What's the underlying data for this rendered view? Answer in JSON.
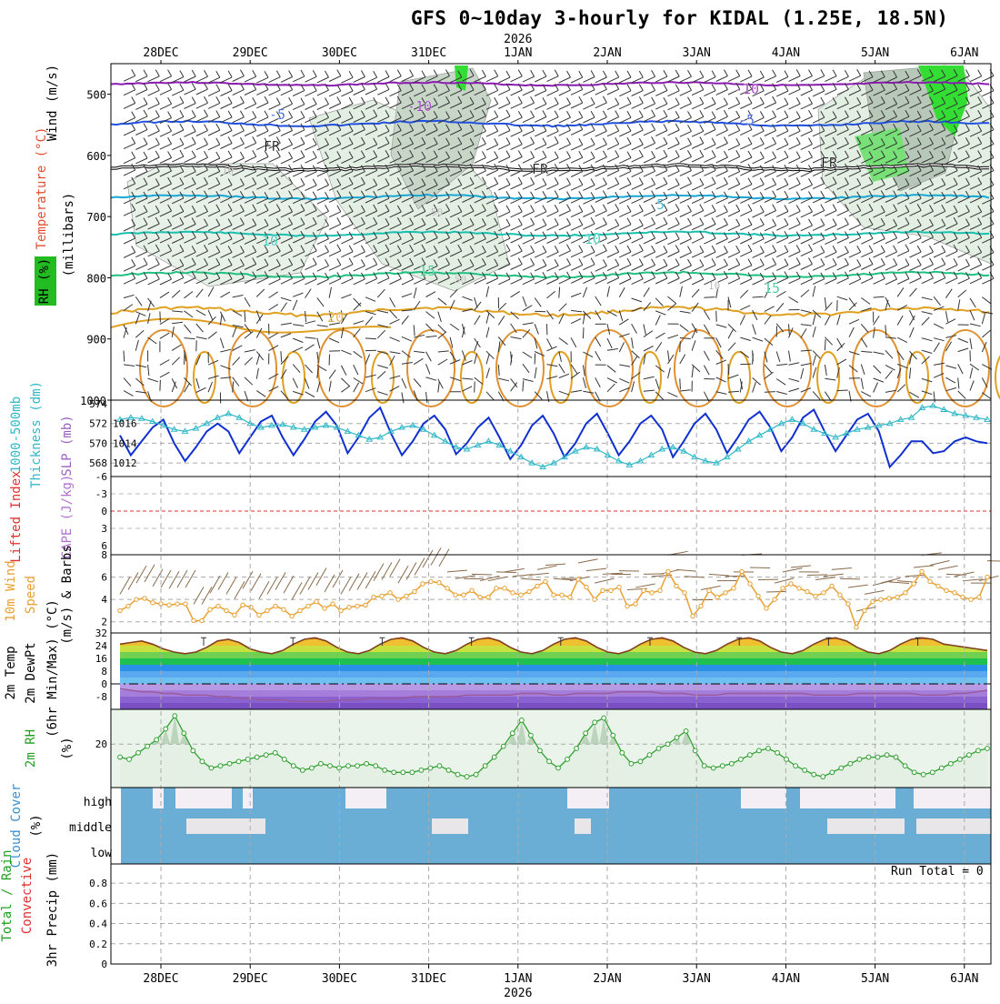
{
  "title": "GFS 0~10day 3-hourly for KIDAL (1.25E, 18.5N)",
  "year_label": "2026",
  "x_axis": {
    "days": [
      "28DEC",
      "29DEC",
      "30DEC",
      "31DEC",
      "1JAN",
      "2JAN",
      "3JAN",
      "4JAN",
      "5JAN",
      "6JAN"
    ],
    "first_day_hour_offset": 18,
    "total_hours": 240
  },
  "colors": {
    "purple_iso": "#8a1ab0",
    "blue_iso": "#2050e0",
    "cyan_iso": "#18a8d8",
    "teal_iso": "#18c0b0",
    "green_iso": "#20c080",
    "orange_iso": "#e0a020",
    "slp_line": "#1030d0",
    "thick_line": "#30b8c8",
    "wind_line": "#e8a030",
    "rh_line": "#30a030",
    "cloud": "#6aaed6",
    "temp_line": "#804020"
  },
  "panels": {
    "upper": {
      "left_labels": [
        "Wind (m/s)",
        "Temperature (°C)",
        "RH (%)",
        "(millibars)"
      ],
      "y_ticks": [
        "500",
        "600",
        "700",
        "800",
        "900",
        "1000"
      ],
      "iso_labels": [
        "-10",
        "-10",
        "-5",
        "-5",
        "FR",
        "FR",
        "FR",
        "5",
        "10",
        "10",
        "15",
        "15",
        "20",
        "10",
        "10",
        "50",
        "50",
        "10"
      ]
    },
    "slp": {
      "left_labels": [
        "1000-500mb",
        "Thickness (dm)",
        "SLP (mb)"
      ],
      "left_ticks": [
        "574",
        "572",
        "570",
        "568"
      ],
      "right_ticks": [
        "1016",
        "1014",
        "1012"
      ]
    },
    "cape": {
      "left_labels": [
        "Lifted Index",
        "CAPE (J/kg)"
      ],
      "ticks": [
        "-6",
        "-3",
        "0",
        "3",
        "6"
      ],
      "bottom_tick": "8"
    },
    "wind10": {
      "left_labels": [
        "10m Wind",
        "Speed",
        "(m/s) & Barbs"
      ],
      "ticks": [
        "6",
        "4",
        "2"
      ]
    },
    "temp2m": {
      "left_labels": [
        "2m Temp",
        "2m DewPt",
        "(6hr Min/Max) (°C)"
      ],
      "ticks": [
        "32",
        "24",
        "16",
        "8",
        "0",
        "-8"
      ]
    },
    "rh2m": {
      "left_labels": [
        "2m RH",
        "(%)"
      ],
      "ticks": [
        "20"
      ]
    },
    "cloud": {
      "left_labels": [
        "Cloud Cover",
        "(%)"
      ],
      "levels": [
        "high",
        "middle",
        "low"
      ]
    },
    "precip": {
      "left_labels": [
        "Total / Rain",
        "Convective",
        "3hr Precip (mm)"
      ],
      "ticks": [
        "0.8",
        "0.6",
        "0.4",
        "0.2",
        "0"
      ],
      "run_total": "Run Total = 0"
    }
  },
  "chart_data": [
    {
      "type": "line",
      "title": "1000-500mb Thickness (dm) & SLP (mb)",
      "series": [
        {
          "name": "SLP (mb)",
          "values": [
            1014.8,
            1012.8,
            1014.2,
            1015.6,
            1016.4,
            1014.0,
            1012.2,
            1013.6,
            1015.2,
            1016.0,
            1015.2,
            1013.0,
            1014.6,
            1016.2,
            1016.8,
            1014.6,
            1012.8,
            1014.4,
            1016.2,
            1017.2,
            1015.8,
            1013.0,
            1014.6,
            1016.6,
            1017.6,
            1015.0,
            1012.8,
            1014.2,
            1016.0,
            1016.8,
            1015.4,
            1012.9,
            1014.0,
            1015.6,
            1016.6,
            1014.6,
            1012.4,
            1013.8,
            1015.8,
            1016.8,
            1015.0,
            1012.6,
            1014.0,
            1016.0,
            1017.0,
            1015.0,
            1012.8,
            1014.2,
            1016.0,
            1016.8,
            1015.4,
            1012.6,
            1014.2,
            1016.0,
            1017.0,
            1015.4,
            1013.0,
            1014.6,
            1016.4,
            1017.2,
            1015.6,
            1013.2,
            1014.6,
            1016.6,
            1017.4,
            1015.2,
            1013.2,
            1014.8,
            1016.4,
            1017.0,
            1015.2,
            1011.6,
            1012.8,
            1014.2,
            1014.2,
            1013.0,
            1013.2,
            1014.2,
            1014.6,
            1014.2,
            1014.0
          ]
        },
        {
          "name": "Thickness (dm)",
          "values": [
            572.4,
            572.6,
            572.5,
            572.2,
            571.8,
            571.4,
            571.2,
            571.5,
            572.0,
            572.6,
            573.0,
            572.6,
            572.0,
            571.6,
            571.8,
            571.9,
            571.6,
            571.4,
            571.6,
            571.8,
            571.6,
            571.2,
            570.8,
            570.4,
            570.6,
            571.2,
            571.6,
            571.8,
            571.4,
            570.8,
            570.2,
            569.6,
            569.4,
            569.8,
            570.2,
            569.8,
            569.2,
            568.6,
            568.0,
            567.6,
            568.0,
            568.6,
            569.2,
            569.6,
            569.4,
            568.8,
            568.2,
            567.8,
            568.2,
            568.8,
            569.4,
            569.6,
            569.2,
            568.6,
            568.2,
            568.0,
            568.6,
            569.4,
            570.2,
            570.8,
            571.4,
            572.0,
            572.4,
            572.0,
            571.4,
            571.0,
            570.6,
            571.0,
            571.4,
            571.6,
            571.8,
            572.0,
            572.4,
            572.6,
            573.6,
            573.8,
            573.4,
            573.0,
            572.8,
            572.6,
            572.4
          ]
        }
      ],
      "ylim_left": [
        567,
        574
      ],
      "ylim_right": [
        1011,
        1018
      ]
    },
    {
      "type": "line",
      "title": "10m Wind Speed (m/s)",
      "series": [
        {
          "name": "Speed (m/s)",
          "values": [
            3.0,
            3.4,
            4.0,
            4.1,
            3.7,
            3.6,
            3.5,
            3.6,
            3.6,
            2.1,
            2.1,
            3.1,
            3.4,
            3.0,
            2.6,
            3.5,
            3.3,
            2.6,
            3.0,
            3.4,
            3.1,
            2.5,
            3.0,
            3.4,
            3.8,
            3.2,
            3.6,
            3.0,
            3.3,
            3.4,
            3.5,
            4.2,
            4.3,
            4.6,
            4.0,
            4.3,
            4.7,
            5.4,
            5.6,
            5.5,
            5.0,
            4.4,
            4.4,
            4.8,
            4.2,
            4.2,
            5.0,
            5.0,
            4.6,
            4.4,
            4.7,
            5.2,
            5.6,
            4.4,
            4.4,
            4.2,
            5.8,
            5.1,
            4.0,
            4.8,
            4.8,
            5.1,
            3.4,
            3.6,
            4.8,
            4.6,
            4.8,
            6.5,
            5.2,
            4.6,
            2.5,
            3.4,
            4.8,
            4.2,
            4.6,
            5.0,
            6.5,
            5.4,
            4.3,
            3.2,
            4.0,
            5.0,
            5.4,
            5.0,
            4.7,
            4.3,
            4.6,
            5.2,
            4.4,
            3.6,
            1.5,
            3.0,
            3.8,
            4.0,
            4.1,
            4.2,
            4.6,
            5.4,
            6.5,
            5.6,
            5.2,
            4.8,
            4.6,
            4.2,
            4.0,
            4.2,
            6.0
          ]
        }
      ],
      "ylim": [
        1,
        8
      ]
    },
    {
      "type": "line",
      "title": "2m Temp / 2m DewPt (°C)",
      "series": [
        {
          "name": "2m Temp",
          "values": [
            25,
            26,
            27,
            25,
            22,
            20,
            19,
            20,
            23,
            27,
            28,
            26,
            22,
            20,
            19,
            21,
            25,
            28,
            29,
            27,
            23,
            20,
            19,
            21,
            25,
            28,
            29,
            27,
            23,
            20,
            19,
            21,
            25,
            28,
            29,
            27,
            23,
            20,
            19,
            21,
            25,
            28,
            29,
            27,
            23,
            20,
            19,
            21,
            25,
            28,
            29,
            27,
            23,
            20,
            19,
            21,
            25,
            28,
            29,
            27,
            23,
            20,
            19,
            21,
            25,
            28,
            29,
            27,
            23,
            20,
            19,
            21,
            25,
            28,
            29,
            28,
            25,
            24,
            23,
            22,
            21
          ]
        },
        {
          "name": "2m DewPt",
          "values": [
            -3,
            -4,
            -5,
            -5,
            -6,
            -6,
            -7,
            -7,
            -7,
            -8,
            -8,
            -9,
            -9,
            -10,
            -10,
            -10,
            -11,
            -11,
            -11,
            -11,
            -10,
            -10,
            -10,
            -9,
            -9,
            -9,
            -9,
            -8,
            -8,
            -8,
            -8,
            -8,
            -7,
            -7,
            -7,
            -7,
            -7,
            -6,
            -6,
            -6,
            -7,
            -7,
            -6,
            -6,
            -6,
            -6,
            -5,
            -5,
            -5,
            -5,
            -6,
            -6,
            -6,
            -7,
            -7,
            -7,
            -6,
            -6,
            -6,
            -6,
            -6,
            -6,
            -6,
            -6,
            -7,
            -7,
            -7,
            -7,
            -6,
            -6,
            -6,
            -6,
            -6,
            -6,
            -7,
            -7,
            -7,
            -6,
            -6,
            -5,
            -4
          ]
        }
      ],
      "ylim": [
        -16,
        32
      ]
    },
    {
      "type": "area",
      "title": "2m RH (%)",
      "series": [
        {
          "name": "2m RH (%)",
          "values": [
            14,
            13,
            16,
            19,
            22,
            27,
            33,
            25,
            17,
            12,
            9,
            10,
            11,
            12,
            13,
            14,
            15,
            16,
            13,
            10,
            8,
            9,
            11,
            10,
            9,
            10,
            10,
            11,
            10,
            8,
            7,
            7,
            7,
            8,
            9,
            10,
            8,
            6,
            5,
            6,
            10,
            14,
            19,
            25,
            31,
            24,
            17,
            12,
            9,
            13,
            18,
            25,
            30,
            32,
            24,
            16,
            11,
            12,
            15,
            18,
            20,
            23,
            26,
            17,
            10,
            9,
            10,
            11,
            13,
            15,
            17,
            18,
            16,
            13,
            10,
            8,
            6,
            5,
            7,
            9,
            11,
            13,
            14,
            14,
            15,
            14,
            10,
            7,
            6,
            7,
            9,
            11,
            13,
            15,
            17,
            18
          ]
        }
      ],
      "ylim": [
        0,
        36
      ]
    },
    {
      "type": "heatmap",
      "title": "Cloud Cover (%)",
      "rows": [
        "high",
        "middle",
        "low"
      ]
    },
    {
      "type": "bar",
      "title": "3hr Precip (mm)",
      "values": [
        0
      ],
      "ylim": [
        0,
        1.0
      ]
    }
  ]
}
